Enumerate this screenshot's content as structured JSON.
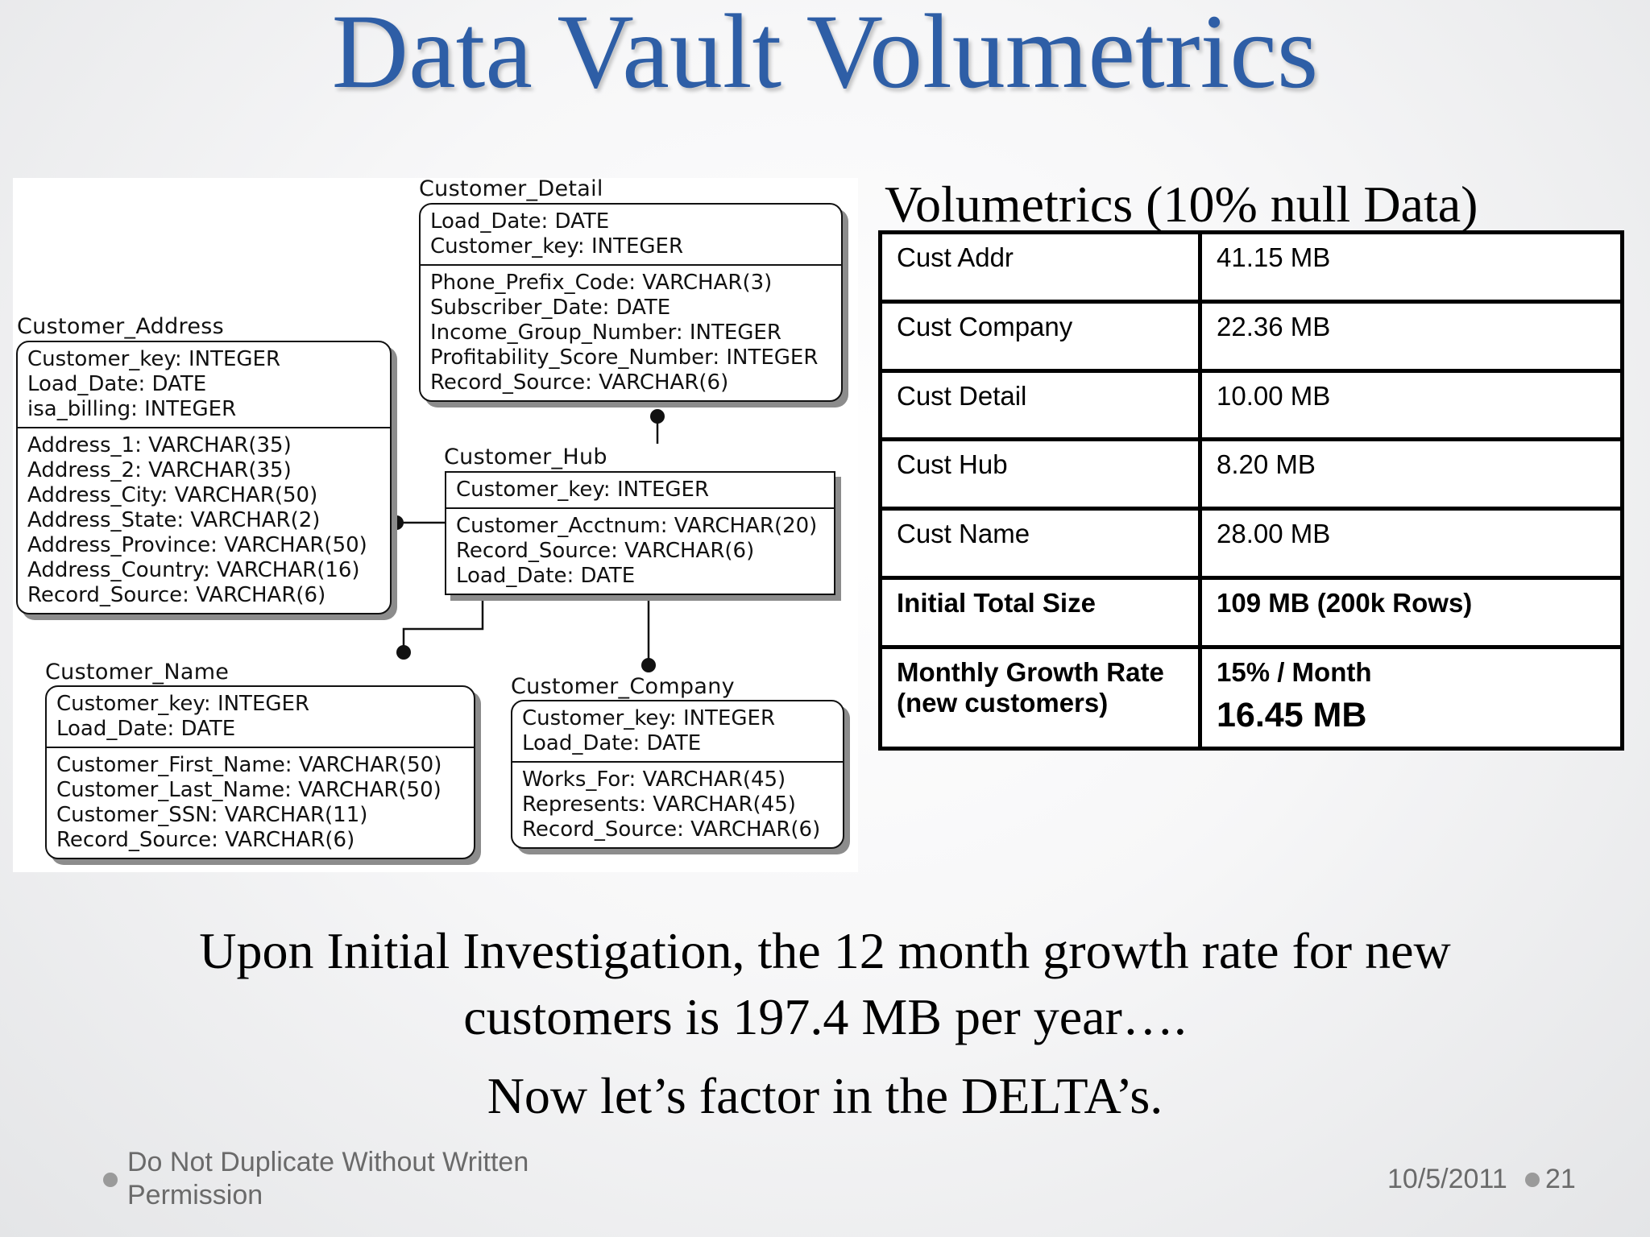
{
  "slide": {
    "title": "Data Vault Volumetrics",
    "caption_line1": "Upon Initial Investigation, the 12 month growth rate for new",
    "caption_line2": "customers is 197.4 MB per year….",
    "caption_line3": "Now let’s factor in the DELTA’s.",
    "footer_left_line1": "Do Not Duplicate Without Written",
    "footer_left_line2": "Permission",
    "footer_date": "10/5/2011",
    "footer_page": "21",
    "title_color": "#2e5ea6"
  },
  "diagram": {
    "customer_detail": {
      "name": "Customer_Detail",
      "keys": [
        "Load_Date: DATE",
        "Customer_key: INTEGER"
      ],
      "attrs": [
        "Phone_Prefix_Code: VARCHAR(3)",
        "Subscriber_Date: DATE",
        "Income_Group_Number: INTEGER",
        "Profitability_Score_Number: INTEGER",
        "Record_Source: VARCHAR(6)"
      ]
    },
    "customer_address": {
      "name": "Customer_Address",
      "keys": [
        "Customer_key: INTEGER",
        "Load_Date: DATE",
        "isa_billing: INTEGER"
      ],
      "attrs": [
        "Address_1: VARCHAR(35)",
        "Address_2: VARCHAR(35)",
        "Address_City: VARCHAR(50)",
        "Address_State: VARCHAR(2)",
        "Address_Province: VARCHAR(50)",
        "Address_Country: VARCHAR(16)",
        "Record_Source: VARCHAR(6)"
      ]
    },
    "customer_hub": {
      "name": "Customer_Hub",
      "keys": [
        "Customer_key: INTEGER"
      ],
      "attrs": [
        "Customer_Acctnum: VARCHAR(20)",
        "Record_Source: VARCHAR(6)",
        "Load_Date: DATE"
      ]
    },
    "customer_name": {
      "name": "Customer_Name",
      "keys": [
        "Customer_key: INTEGER",
        "Load_Date: DATE"
      ],
      "attrs": [
        "Customer_First_Name: VARCHAR(50)",
        "Customer_Last_Name: VARCHAR(50)",
        "Customer_SSN: VARCHAR(11)",
        "Record_Source: VARCHAR(6)"
      ]
    },
    "customer_company": {
      "name": "Customer_Company",
      "keys": [
        "Customer_key: INTEGER",
        "Load_Date: DATE"
      ],
      "attrs": [
        "Works_For: VARCHAR(45)",
        "Represents: VARCHAR(45)",
        "Record_Source: VARCHAR(6)"
      ]
    }
  },
  "volumetrics": {
    "title": "Volumetrics (10% null Data)",
    "rows": [
      {
        "label": "Cust Addr",
        "value": "41.15 MB"
      },
      {
        "label": "Cust Company",
        "value": "22.36 MB"
      },
      {
        "label": "Cust Detail",
        "value": "10.00 MB"
      },
      {
        "label": "Cust Hub",
        "value": "8.20 MB"
      },
      {
        "label": "Cust Name",
        "value": "28.00 MB"
      }
    ],
    "total": {
      "label": "Initial Total Size",
      "value": "109 MB (200k Rows)"
    },
    "growth": {
      "label_line1": "Monthly Growth Rate",
      "label_line2": "(new customers)",
      "value_line1": "15% / Month",
      "value_line2": "16.45 MB"
    }
  }
}
